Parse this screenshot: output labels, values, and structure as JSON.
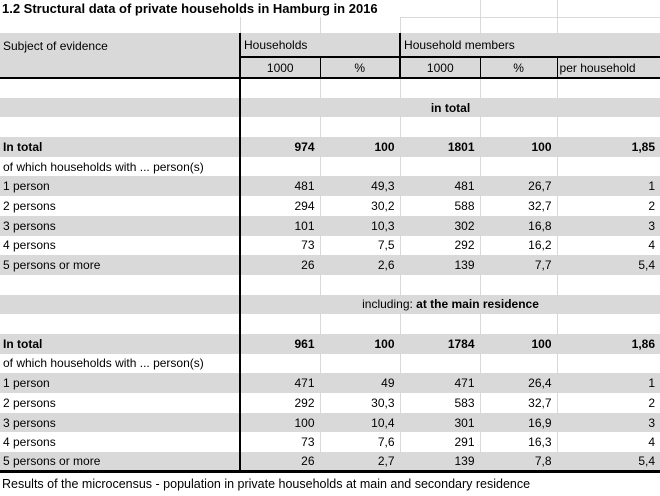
{
  "title": "1.2 Structural data of private households in Hamburg in 2016",
  "columns": {
    "subject": "Subject of evidence",
    "group_households": "Households",
    "group_members": "Household members",
    "sub_households_1000": "1000",
    "sub_households_pct": "%",
    "sub_members_1000": "1000",
    "sub_members_pct": "%",
    "sub_per_household": "per household"
  },
  "sections": [
    {
      "band": {
        "prefix": "",
        "label": "in total"
      },
      "rows": [
        {
          "label": "In total",
          "bold": true,
          "values": [
            "974",
            "100",
            "1801",
            "100",
            "1,85"
          ]
        },
        {
          "label": "of which households with ... person(s)",
          "bold": false,
          "values": [
            "",
            "",
            "",
            "",
            ""
          ]
        },
        {
          "label": "1 person",
          "bold": false,
          "values": [
            "481",
            "49,3",
            "481",
            "26,7",
            "1"
          ]
        },
        {
          "label": "2 persons",
          "bold": false,
          "values": [
            "294",
            "30,2",
            "588",
            "32,7",
            "2"
          ]
        },
        {
          "label": "3 persons",
          "bold": false,
          "values": [
            "101",
            "10,3",
            "302",
            "16,8",
            "3"
          ]
        },
        {
          "label": "4 persons",
          "bold": false,
          "values": [
            "73",
            "7,5",
            "292",
            "16,2",
            "4"
          ]
        },
        {
          "label": "5 persons or more",
          "bold": false,
          "values": [
            "26",
            "2,6",
            "139",
            "7,7",
            "5,4"
          ]
        }
      ]
    },
    {
      "band": {
        "prefix": "including: ",
        "label": "at the main residence"
      },
      "rows": [
        {
          "label": "In total",
          "bold": true,
          "values": [
            "961",
            "100",
            "1784",
            "100",
            "1,86"
          ]
        },
        {
          "label": "of which households with ... person(s)",
          "bold": false,
          "values": [
            "",
            "",
            "",
            "",
            ""
          ]
        },
        {
          "label": "1 person",
          "bold": false,
          "values": [
            "471",
            "49",
            "471",
            "26,4",
            "1"
          ]
        },
        {
          "label": "2 persons",
          "bold": false,
          "values": [
            "292",
            "30,3",
            "583",
            "32,7",
            "2"
          ]
        },
        {
          "label": "3 persons",
          "bold": false,
          "values": [
            "100",
            "10,4",
            "301",
            "16,9",
            "3"
          ]
        },
        {
          "label": "4 persons",
          "bold": false,
          "values": [
            "73",
            "7,6",
            "291",
            "16,3",
            "4"
          ]
        },
        {
          "label": "5 persons or more",
          "bold": false,
          "values": [
            "26",
            "2,7",
            "139",
            "7,8",
            "5,4"
          ]
        }
      ]
    }
  ],
  "footer": "Results of the microcensus - population in private households at main and secondary residence",
  "colors": {
    "shaded_band": "#d9d9d9",
    "grid_line": "#d9d9d9",
    "border": "#000000"
  }
}
